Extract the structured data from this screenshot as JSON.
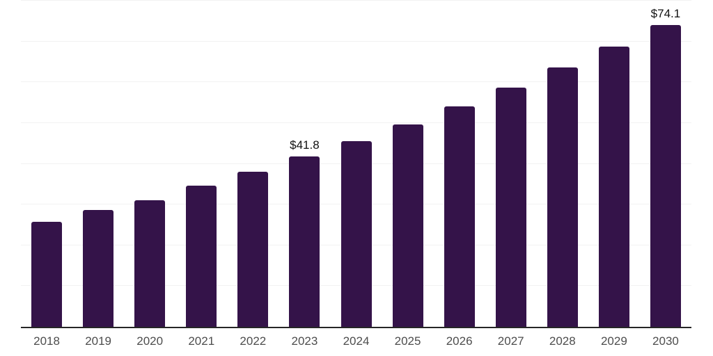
{
  "chart_data": {
    "type": "bar",
    "title": "",
    "xlabel": "",
    "ylabel": "",
    "categories": [
      "2018",
      "2019",
      "2020",
      "2021",
      "2022",
      "2023",
      "2024",
      "2025",
      "2026",
      "2027",
      "2028",
      "2029",
      "2030"
    ],
    "values": [
      25.8,
      28.7,
      31.1,
      34.7,
      38.1,
      41.8,
      45.5,
      49.6,
      54.0,
      58.7,
      63.6,
      68.7,
      74.1
    ],
    "point_labels": [
      "",
      "",
      "",
      "",
      "",
      "$41.8",
      "",
      "",
      "",
      "",
      "",
      "",
      "$74.1"
    ],
    "ylim": [
      0,
      80
    ],
    "gridline_step": 10,
    "grid": "horizontal-only",
    "legend": "none",
    "y_tick_labels_visible": false,
    "colors": {
      "bar": "#341349",
      "gridline": "#f2f2f2",
      "axis_line": "#262626",
      "x_tick_label": "#4d4d4d",
      "point_label": "#111111",
      "background": "#ffffff"
    }
  }
}
